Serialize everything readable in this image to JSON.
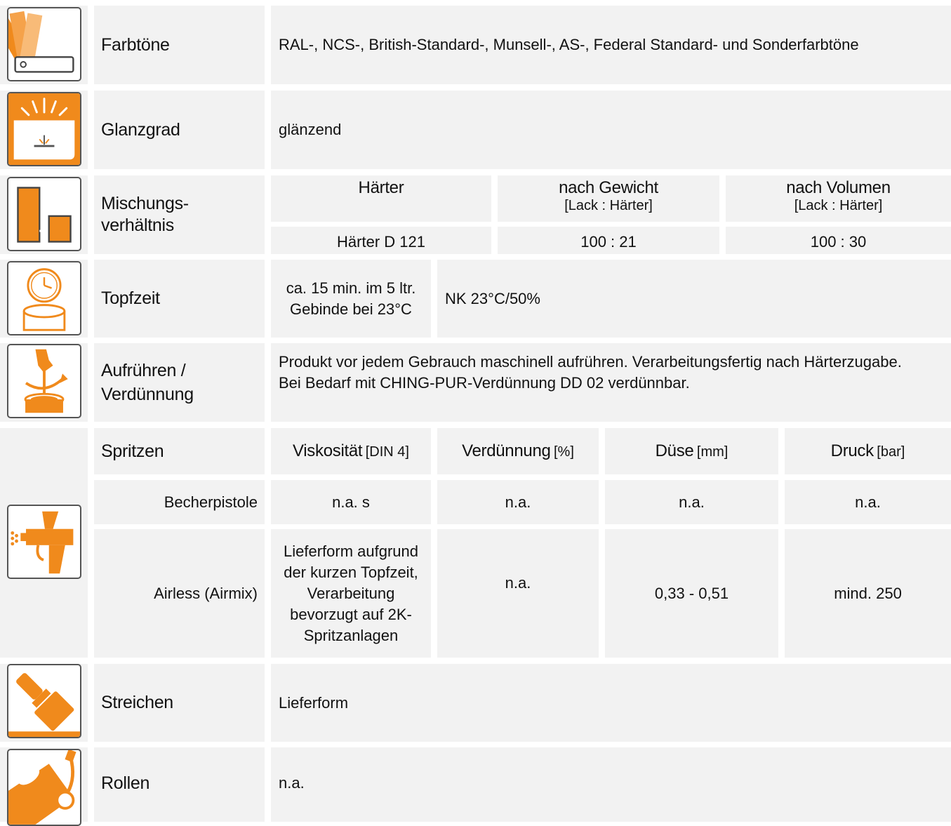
{
  "accent_color": "#f08a1c",
  "rows": {
    "farbtoene": {
      "icon": "color-fan-icon",
      "label": "Farbtöne",
      "value": "RAL-, NCS-, British-Standard-, Munsell-, AS-, Federal Standard- und Sonderfarbtöne"
    },
    "glanzgrad": {
      "icon": "gloss-icon",
      "label": "Glanzgrad",
      "value": "glänzend"
    },
    "mischung": {
      "icon": "mixing-ratio-icon",
      "label": "Mischungs-verhältnis",
      "headers": [
        {
          "title": "Härter",
          "sub": ""
        },
        {
          "title": "nach Gewicht",
          "sub": "[Lack : Härter]"
        },
        {
          "title": "nach Volumen",
          "sub": "[Lack : Härter]"
        }
      ],
      "values": [
        "Härter D 121",
        "100 : 21",
        "100 : 30"
      ]
    },
    "topfzeit": {
      "icon": "pot-life-clock-icon",
      "label": "Topfzeit",
      "value": "ca. 15 min. im 5 ltr. Gebinde bei 23°C",
      "condition": "NK 23°C/50%"
    },
    "aufruehren": {
      "icon": "stirring-icon",
      "label": "Aufrühren / Verdünnung",
      "lines": [
        "Produkt vor jedem Gebrauch maschinell aufrühren. Verarbeitungsfertig nach Härterzugabe.",
        "Bei Bedarf mit CHING-PUR-Verdünnung DD 02 verdünnbar."
      ]
    },
    "spritzen": {
      "icon": "spray-gun-icon",
      "label": "Spritzen",
      "headers": [
        {
          "title": "Viskosität",
          "unit": "[DIN 4]"
        },
        {
          "title": "Verdünnung",
          "unit": "[%]"
        },
        {
          "title": "Düse",
          "unit": "[mm]"
        },
        {
          "title": "Druck",
          "unit": "[bar]"
        }
      ],
      "becher": {
        "label": "Becherpistole",
        "values": [
          "n.a. s",
          "n.a.",
          "n.a.",
          "n.a."
        ]
      },
      "airless": {
        "label": "Airless (Airmix)",
        "values": [
          "Lieferform aufgrund der kurzen Topfzeit, Verarbeitung bevorzugt auf 2K-Spritzanlagen",
          "n.a.",
          "0,33 - 0,51",
          "mind. 250"
        ]
      }
    },
    "streichen": {
      "icon": "paint-brush-icon",
      "label": "Streichen",
      "value": "Lieferform"
    },
    "rollen": {
      "icon": "paint-roller-icon",
      "label": "Rollen",
      "value": "n.a."
    }
  }
}
